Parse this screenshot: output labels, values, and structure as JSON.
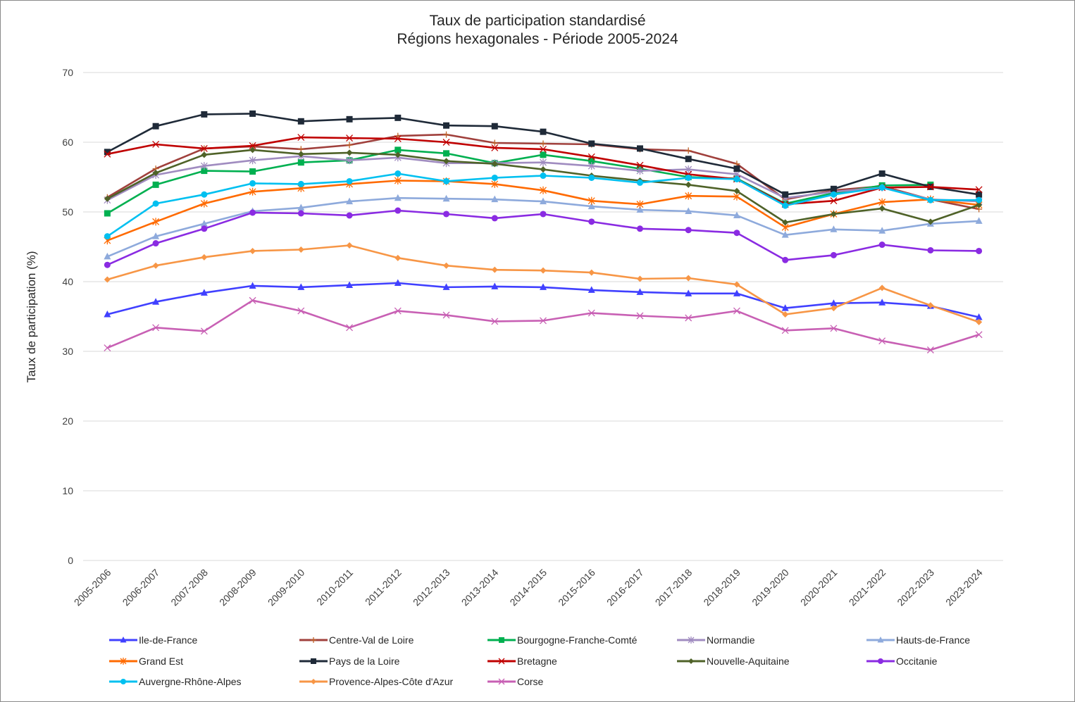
{
  "chart_data": {
    "type": "line",
    "title": [
      "Taux de participation standardisé",
      "Régions hexagonales - Période 2005-2024"
    ],
    "xlabel": "",
    "ylabel": "Taux de participation (%)",
    "ylim": [
      0,
      70
    ],
    "yticks": [
      0,
      10,
      20,
      30,
      40,
      50,
      60,
      70
    ],
    "grid": true,
    "legend_position": "bottom",
    "categories": [
      "2005-2006",
      "2006-2007",
      "2007-2008",
      "2008-2009",
      "2009-2010",
      "2010-2011",
      "2011-2012",
      "2012-2013",
      "2013-2014",
      "2014-2015",
      "2015-2016",
      "2016-2017",
      "2017-2018",
      "2018-2019",
      "2019-2020",
      "2020-2021",
      "2021-2022",
      "2022-2023",
      "2023-2024"
    ],
    "series": [
      {
        "name": "Ile-de-France",
        "color": "#4040ff",
        "marker": "triangle",
        "values": [
          35.3,
          37.1,
          38.4,
          39.4,
          39.2,
          39.5,
          39.8,
          39.2,
          39.3,
          39.2,
          38.8,
          38.5,
          38.3,
          38.3,
          36.2,
          36.9,
          37.0,
          36.5,
          34.9
        ]
      },
      {
        "name": "Centre-Val de Loire",
        "color": "#a0403c",
        "marker": "plus",
        "values": [
          52.1,
          56.2,
          59.1,
          59.4,
          59.0,
          59.6,
          60.9,
          61.1,
          59.9,
          59.8,
          59.7,
          59.0,
          58.8,
          56.9,
          51.8,
          53.1,
          53.7,
          51.8,
          50.4
        ]
      },
      {
        "name": "Bourgogne-Franche-Comté",
        "color": "#00b050",
        "marker": "square",
        "values": [
          49.8,
          53.9,
          55.9,
          55.8,
          57.1,
          57.4,
          58.9,
          58.4,
          57.0,
          58.2,
          57.3,
          56.2,
          55.0,
          54.8,
          51.2,
          52.7,
          53.8,
          53.9,
          null
        ]
      },
      {
        "name": "Normandie",
        "color": "#a08cc0",
        "marker": "asterisk",
        "values": [
          51.7,
          55.3,
          56.6,
          57.4,
          58.0,
          57.4,
          57.8,
          57.0,
          57.0,
          57.1,
          56.6,
          55.9,
          56.1,
          55.4,
          52.0,
          52.9,
          53.5,
          51.8,
          51.5
        ]
      },
      {
        "name": "Hauts-de-France",
        "color": "#8eaadc",
        "marker": "triangle",
        "values": [
          43.6,
          46.5,
          48.3,
          50.1,
          50.6,
          51.5,
          52.0,
          51.9,
          51.8,
          51.5,
          50.8,
          50.3,
          50.1,
          49.5,
          46.7,
          47.5,
          47.3,
          48.3,
          48.7
        ]
      },
      {
        "name": "Grand Est",
        "color": "#ff6a00",
        "marker": "asterisk",
        "values": [
          45.9,
          48.6,
          51.2,
          52.9,
          53.4,
          54.0,
          54.5,
          54.4,
          54.0,
          53.1,
          51.6,
          51.1,
          52.3,
          52.2,
          47.8,
          49.7,
          51.4,
          51.8,
          51.0
        ]
      },
      {
        "name": "Pays de la Loire",
        "color": "#1f2a38",
        "marker": "square",
        "values": [
          58.6,
          62.3,
          64.0,
          64.1,
          63.0,
          63.3,
          63.5,
          62.4,
          62.3,
          61.5,
          59.8,
          59.1,
          57.6,
          56.2,
          52.5,
          53.3,
          55.5,
          53.6,
          52.5
        ]
      },
      {
        "name": "Bretagne",
        "color": "#c00000",
        "marker": "x",
        "values": [
          58.3,
          59.7,
          59.1,
          59.5,
          60.7,
          60.6,
          60.5,
          60.0,
          59.2,
          59.0,
          57.9,
          56.7,
          55.4,
          54.7,
          51.1,
          51.6,
          53.5,
          53.6,
          53.2
        ]
      },
      {
        "name": "Nouvelle-Aquitaine",
        "color": "#4f6228",
        "marker": "diamond",
        "values": [
          51.9,
          55.6,
          58.2,
          58.9,
          58.3,
          58.5,
          58.2,
          57.3,
          56.9,
          56.1,
          55.2,
          54.5,
          53.9,
          53.0,
          48.5,
          49.7,
          50.5,
          48.6,
          51.0
        ]
      },
      {
        "name": "Occitanie",
        "color": "#8a2be2",
        "marker": "circle",
        "values": [
          42.4,
          45.5,
          47.6,
          49.9,
          49.8,
          49.5,
          50.2,
          49.7,
          49.1,
          49.7,
          48.6,
          47.6,
          47.4,
          47.0,
          43.1,
          43.8,
          45.3,
          44.5,
          44.4
        ]
      },
      {
        "name": "Auvergne-Rhône-Alpes",
        "color": "#00c0f0",
        "marker": "circle",
        "values": [
          46.5,
          51.2,
          52.5,
          54.1,
          54.0,
          54.4,
          55.5,
          54.4,
          54.9,
          55.2,
          54.9,
          54.2,
          54.9,
          54.7,
          50.9,
          52.5,
          53.5,
          51.7,
          51.7
        ]
      },
      {
        "name": "Provence-Alpes-Côte d'Azur",
        "color": "#f79646",
        "marker": "diamond",
        "values": [
          40.3,
          42.3,
          43.5,
          44.4,
          44.6,
          45.2,
          43.4,
          42.3,
          41.7,
          41.6,
          41.3,
          40.4,
          40.5,
          39.6,
          35.3,
          36.2,
          39.1,
          36.6,
          34.2
        ]
      },
      {
        "name": "Corse",
        "color": "#c860b4",
        "marker": "x",
        "values": [
          30.5,
          33.4,
          32.9,
          37.3,
          35.8,
          33.4,
          35.8,
          35.2,
          34.3,
          34.4,
          35.5,
          35.1,
          34.8,
          35.8,
          33.0,
          33.3,
          31.5,
          30.2,
          32.4
        ]
      }
    ]
  }
}
